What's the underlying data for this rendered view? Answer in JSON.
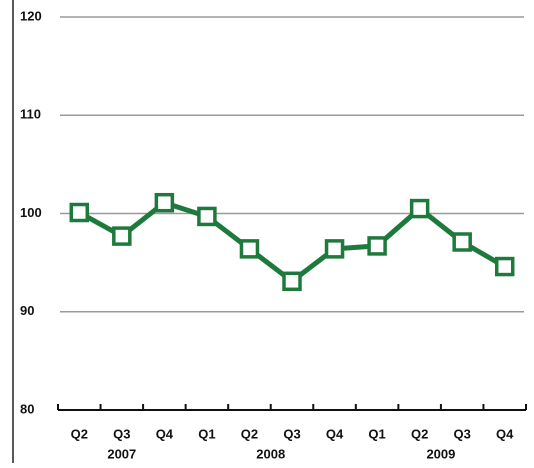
{
  "chart_data": {
    "type": "line",
    "groups": [
      {
        "label": "2007",
        "categories": [
          "Q2",
          "Q3",
          "Q4"
        ]
      },
      {
        "label": "2008",
        "categories": [
          "Q1",
          "Q2",
          "Q3",
          "Q4"
        ]
      },
      {
        "label": "2009",
        "categories": [
          "Q1",
          "Q2",
          "Q3",
          "Q4"
        ]
      }
    ],
    "values": [
      100.1,
      97.7,
      101.1,
      99.7,
      96.4,
      93.1,
      96.4,
      96.7,
      100.5,
      97.1,
      94.6
    ],
    "color": "#1e7a3c",
    "ylim": [
      80,
      120
    ],
    "yticks": [
      80,
      90,
      100,
      110,
      120
    ],
    "grid": true
  }
}
